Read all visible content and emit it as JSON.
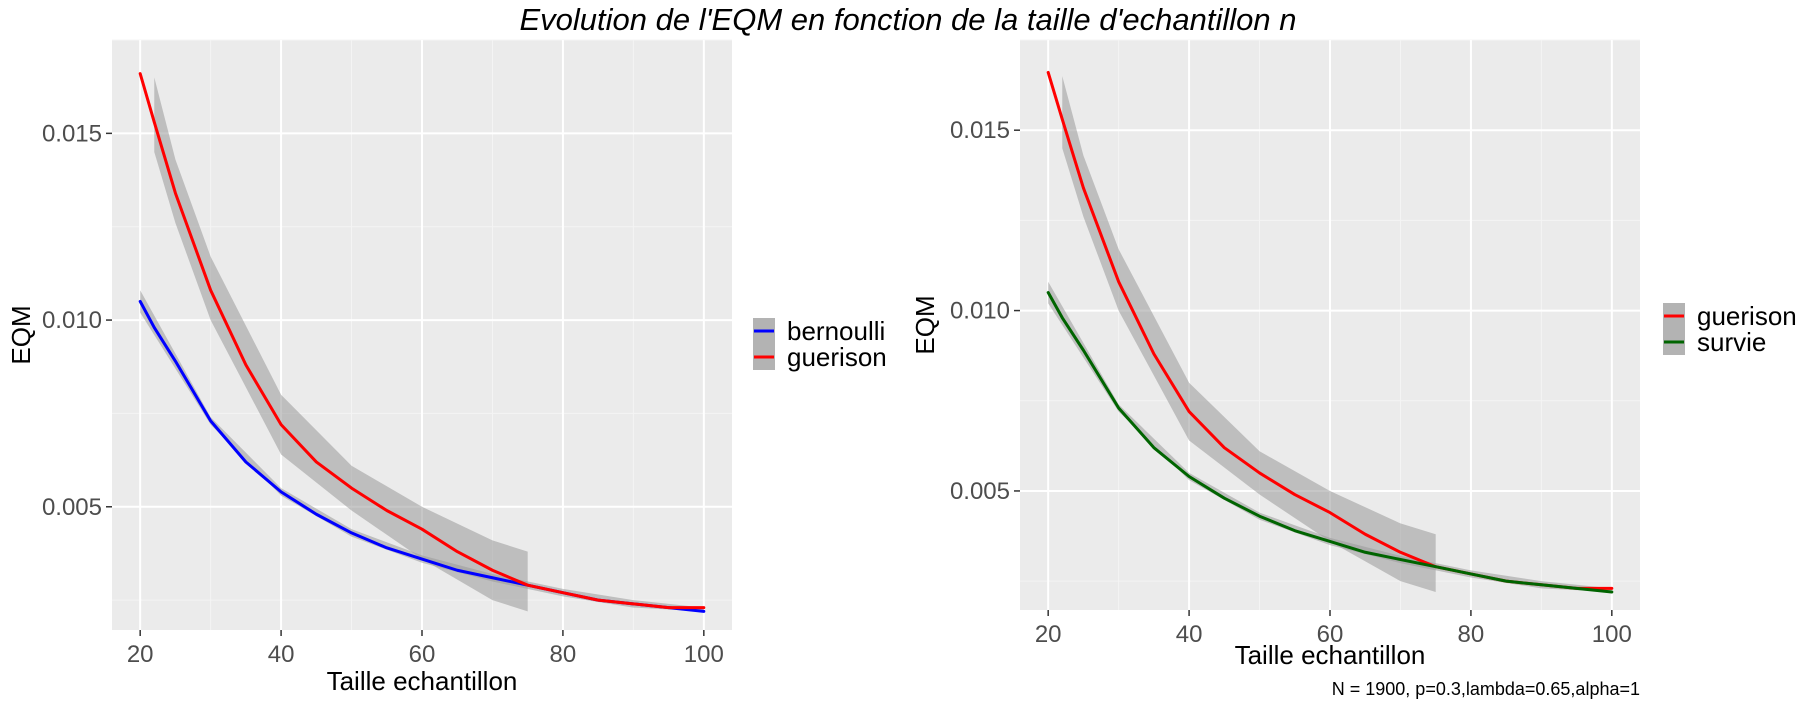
{
  "figure": {
    "title": "Evolution de l'EQM en fonction de la taille d'echantillon n",
    "caption": "N = 1900, p=0.3,lambda=0.65,alpha=1"
  },
  "chart_data": [
    {
      "type": "line",
      "xlabel": "Taille echantillon",
      "ylabel": "EQM",
      "xlim": [
        16,
        104
      ],
      "ylim": [
        0.0017,
        0.0175
      ],
      "xticks": [
        20,
        40,
        60,
        80,
        100
      ],
      "xtick_labels": [
        "20",
        "40",
        "60",
        "80",
        "100"
      ],
      "yticks": [
        0.005,
        0.01,
        0.015
      ],
      "ytick_labels": [
        "0.005",
        "0.010",
        "0.015"
      ],
      "grid": true,
      "legend_position": "right",
      "series": [
        {
          "name": "bernoulli",
          "color": "#0000ff",
          "x": [
            20,
            22,
            25,
            30,
            35,
            40,
            45,
            50,
            55,
            60,
            65,
            70,
            75,
            80,
            85,
            90,
            95,
            100
          ],
          "y": [
            0.0105,
            0.0098,
            0.0089,
            0.0073,
            0.0062,
            0.0054,
            0.0048,
            0.0043,
            0.0039,
            0.0036,
            0.0033,
            0.0031,
            0.0029,
            0.0027,
            0.0025,
            0.0024,
            0.0023,
            0.0022
          ],
          "band": {
            "x": [
              20,
              25,
              30,
              40,
              50,
              60,
              70,
              80,
              90,
              100
            ],
            "lower": [
              0.0102,
              0.0087,
              0.0072,
              0.0053,
              0.0042,
              0.0035,
              0.003,
              0.0026,
              0.0023,
              0.0022
            ],
            "upper": [
              0.0108,
              0.0091,
              0.0074,
              0.0055,
              0.0044,
              0.0037,
              0.0032,
              0.0028,
              0.0025,
              0.0023
            ]
          }
        },
        {
          "name": "guerison",
          "color": "#ff0000",
          "x": [
            20,
            22,
            25,
            30,
            35,
            40,
            45,
            50,
            55,
            60,
            65,
            70,
            75,
            80,
            85,
            90,
            95,
            100
          ],
          "y": [
            0.0166,
            0.0153,
            0.0134,
            0.0108,
            0.0088,
            0.0072,
            0.0062,
            0.0055,
            0.0049,
            0.0044,
            0.0038,
            0.0033,
            0.0029,
            0.0027,
            0.0025,
            0.0024,
            0.0023,
            0.0023
          ],
          "band": {
            "x": [
              22,
              25,
              30,
              40,
              50,
              60,
              70,
              75
            ],
            "lower": [
              0.0145,
              0.0126,
              0.01,
              0.0064,
              0.0049,
              0.0036,
              0.0025,
              0.0022
            ],
            "upper": [
              0.0165,
              0.0143,
              0.0117,
              0.008,
              0.0061,
              0.005,
              0.0041,
              0.0038
            ]
          }
        }
      ]
    },
    {
      "type": "line",
      "xlabel": "Taille echantillon",
      "ylabel": "EQM",
      "xlim": [
        16,
        104
      ],
      "ylim": [
        0.0017,
        0.0175
      ],
      "xticks": [
        20,
        40,
        60,
        80,
        100
      ],
      "xtick_labels": [
        "20",
        "40",
        "60",
        "80",
        "100"
      ],
      "yticks": [
        0.005,
        0.01,
        0.015
      ],
      "ytick_labels": [
        "0.005",
        "0.010",
        "0.015"
      ],
      "grid": true,
      "legend_position": "right",
      "series": [
        {
          "name": "guerison",
          "color": "#ff0000",
          "x": [
            20,
            22,
            25,
            30,
            35,
            40,
            45,
            50,
            55,
            60,
            65,
            70,
            75,
            80,
            85,
            90,
            95,
            100
          ],
          "y": [
            0.0166,
            0.0153,
            0.0134,
            0.0108,
            0.0088,
            0.0072,
            0.0062,
            0.0055,
            0.0049,
            0.0044,
            0.0038,
            0.0033,
            0.0029,
            0.0027,
            0.0025,
            0.0024,
            0.0023,
            0.0023
          ],
          "band": {
            "x": [
              22,
              25,
              30,
              40,
              50,
              60,
              70,
              75
            ],
            "lower": [
              0.0145,
              0.0126,
              0.01,
              0.0064,
              0.0049,
              0.0036,
              0.0025,
              0.0022
            ],
            "upper": [
              0.0165,
              0.0143,
              0.0117,
              0.008,
              0.0061,
              0.005,
              0.0041,
              0.0038
            ]
          }
        },
        {
          "name": "survie",
          "color": "#006400",
          "x": [
            20,
            22,
            25,
            30,
            35,
            40,
            45,
            50,
            55,
            60,
            65,
            70,
            75,
            80,
            85,
            90,
            95,
            100
          ],
          "y": [
            0.0105,
            0.0098,
            0.0089,
            0.0073,
            0.0062,
            0.0054,
            0.0048,
            0.0043,
            0.0039,
            0.0036,
            0.0033,
            0.0031,
            0.0029,
            0.0027,
            0.0025,
            0.0024,
            0.0023,
            0.0022
          ],
          "band": {
            "x": [
              20,
              25,
              30,
              40,
              50,
              60,
              70,
              80,
              90,
              100
            ],
            "lower": [
              0.0102,
              0.0087,
              0.0072,
              0.0053,
              0.0042,
              0.0035,
              0.003,
              0.0026,
              0.0023,
              0.0022
            ],
            "upper": [
              0.0108,
              0.0091,
              0.0074,
              0.0055,
              0.0044,
              0.0037,
              0.0032,
              0.0028,
              0.0025,
              0.0023
            ]
          }
        }
      ]
    }
  ]
}
